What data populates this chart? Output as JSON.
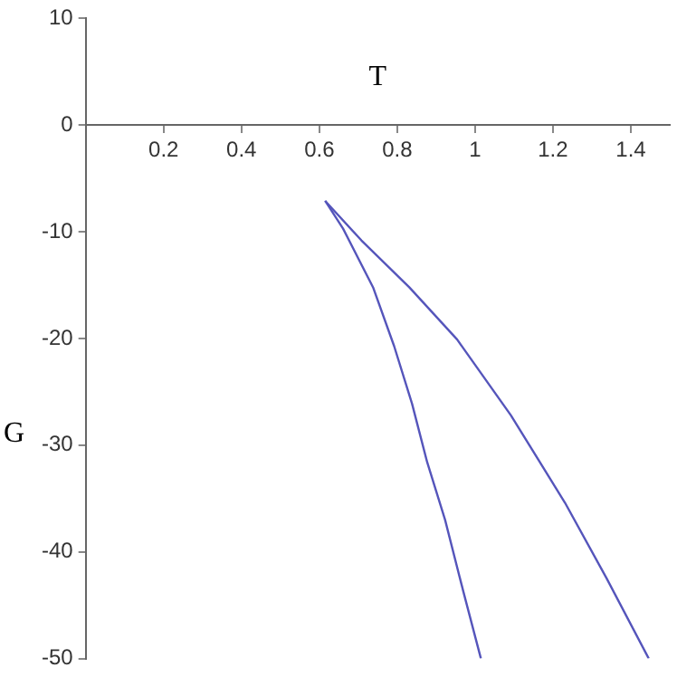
{
  "chart_data": {
    "type": "line",
    "xlabel": "T",
    "ylabel": "G",
    "xlim": [
      0,
      1.5
    ],
    "ylim": [
      -50,
      10
    ],
    "xticks": [
      0.2,
      0.4,
      0.6,
      0.8,
      1,
      1.2,
      1.4
    ],
    "yticks": [
      -50,
      -40,
      -30,
      -20,
      -10,
      0,
      10
    ],
    "grid": false,
    "legend": false,
    "marker": "none",
    "series": [
      {
        "color": "#5555bb",
        "x": [
          0.615,
          0.661,
          0.738,
          0.792,
          0.838,
          0.877,
          0.923,
          0.969,
          1.015
        ],
        "values": [
          -7.1,
          -9.7,
          -15.2,
          -20.7,
          -26.1,
          -31.6,
          -37.0,
          -43.6,
          -50
        ]
      },
      {
        "color": "#5555bb",
        "x": [
          0.615,
          0.708,
          0.831,
          0.954,
          1.092,
          1.231,
          1.338,
          1.446
        ],
        "values": [
          -7.1,
          -10.8,
          -15.2,
          -20.1,
          -27.2,
          -35.4,
          -42.5,
          -50
        ]
      }
    ]
  }
}
